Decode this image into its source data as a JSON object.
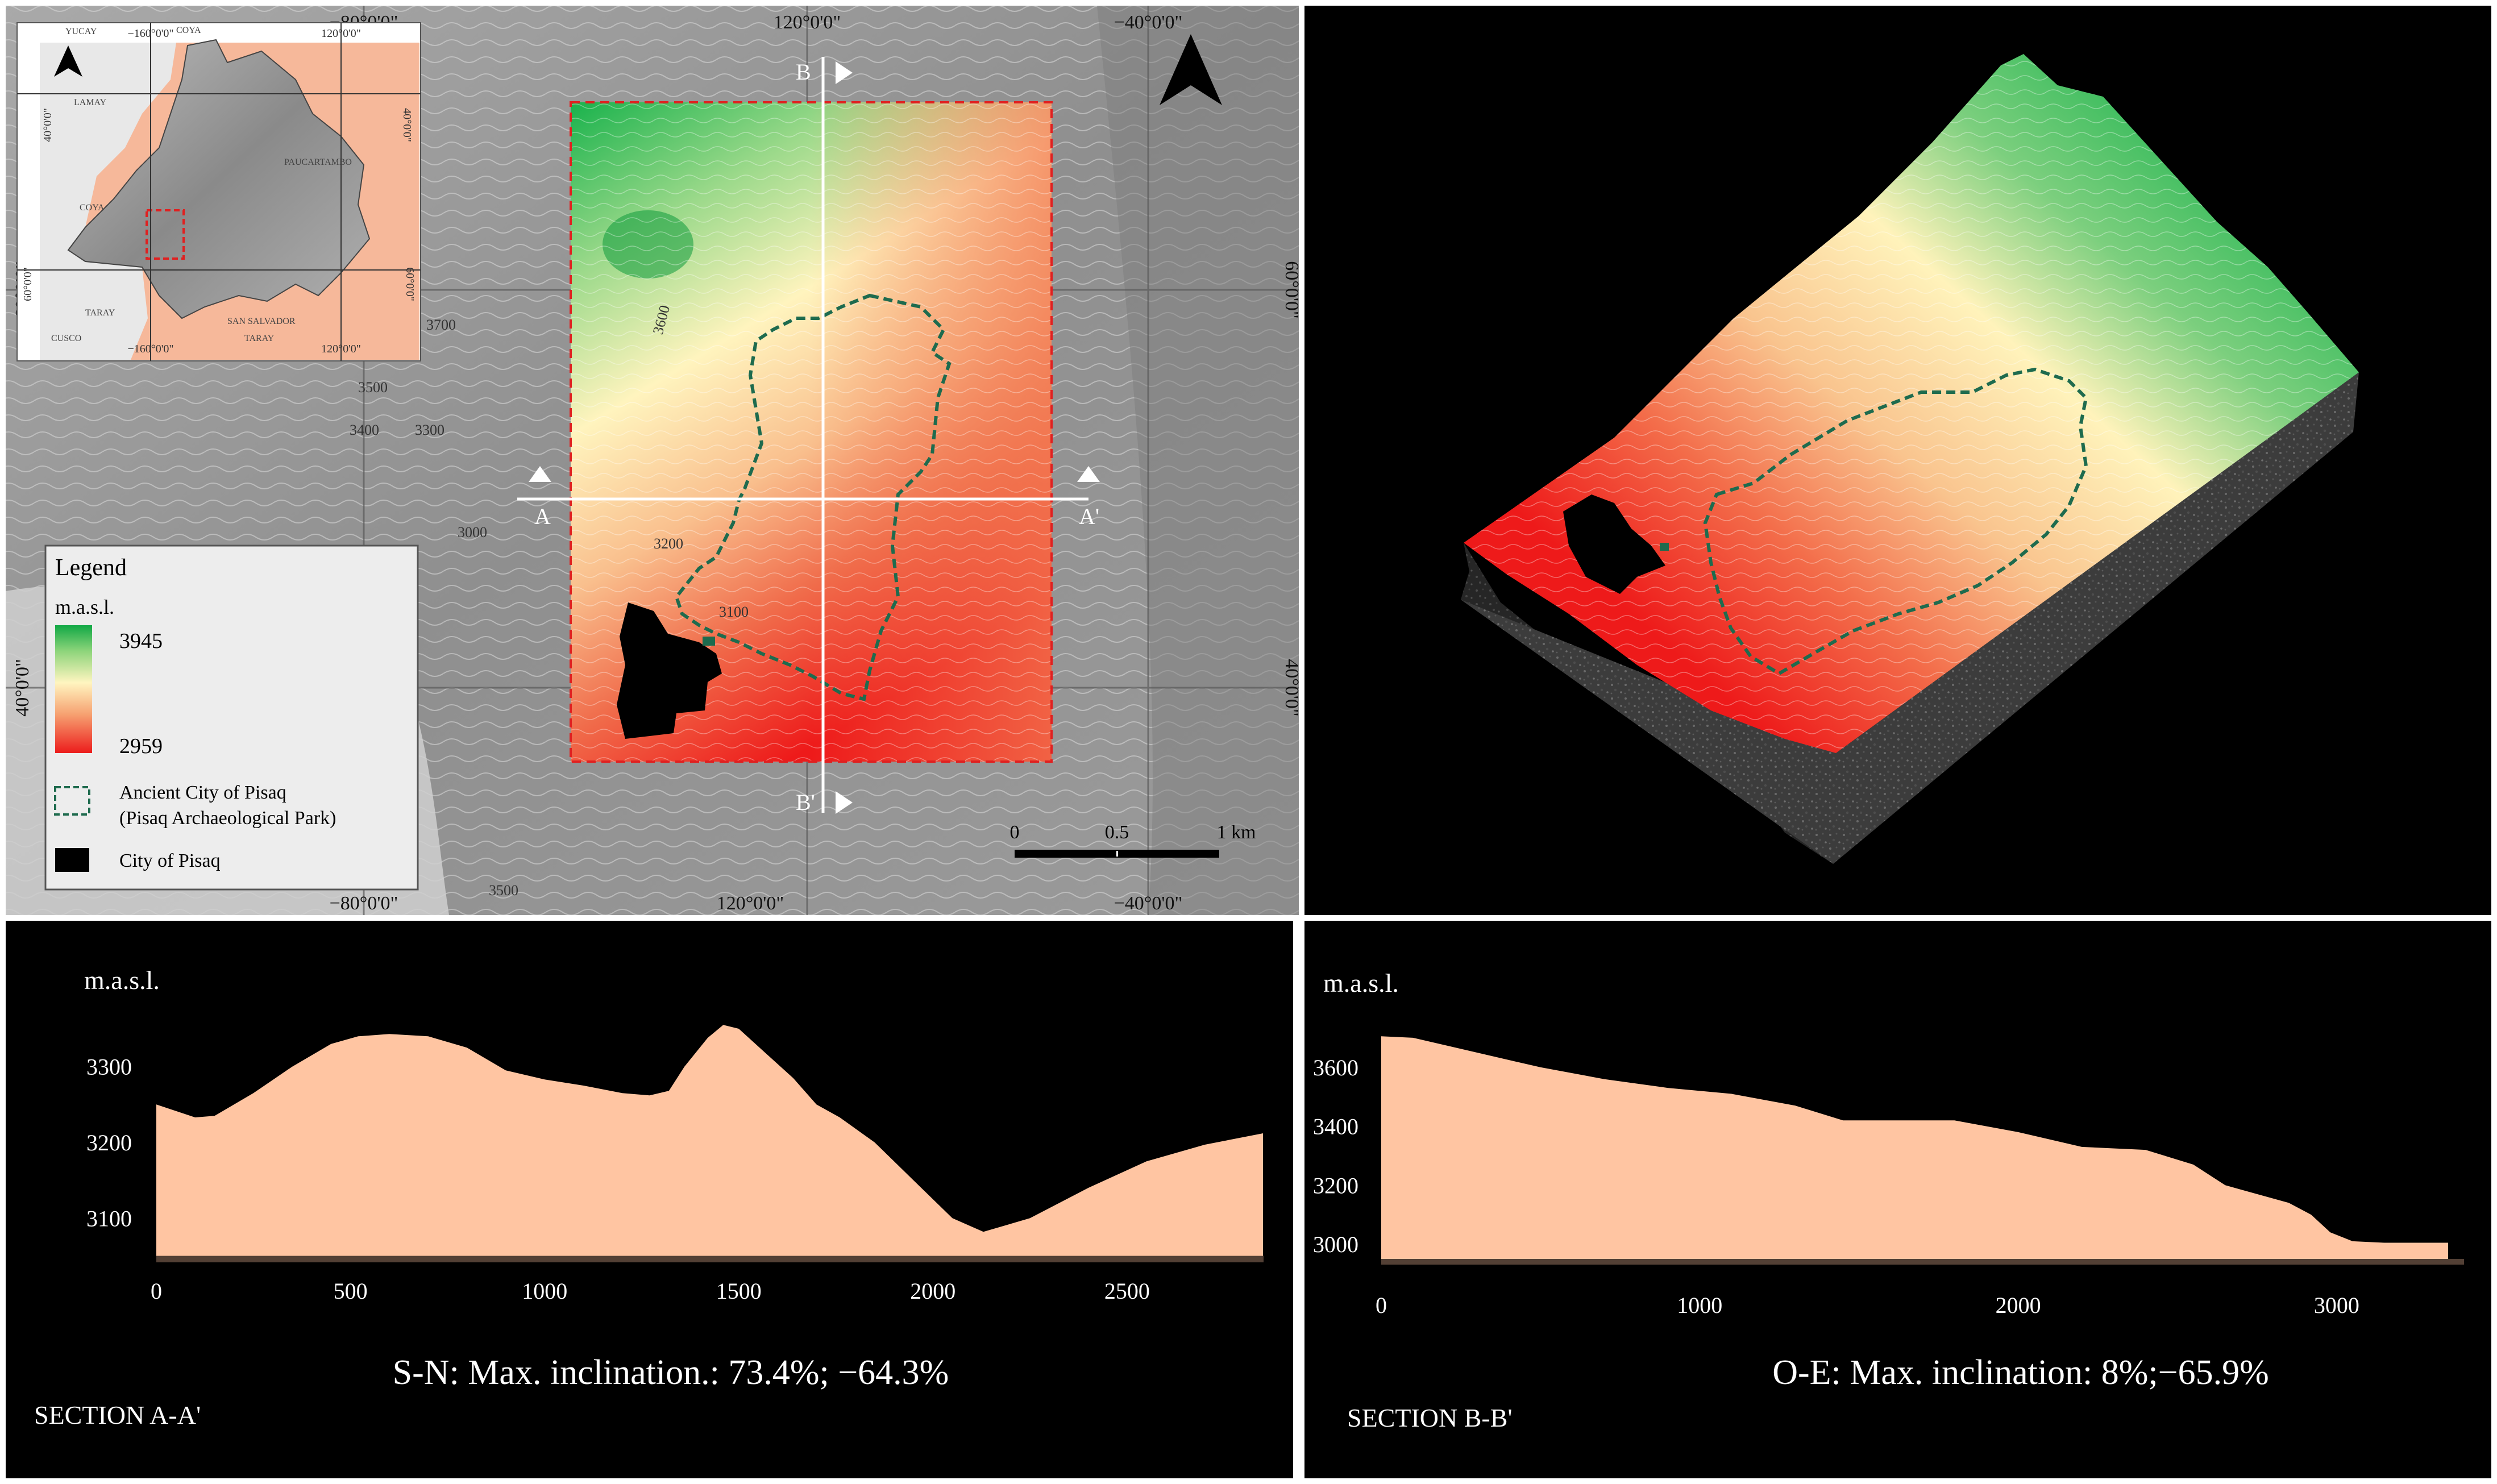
{
  "map": {
    "coords": {
      "top_left": "−80°0'0\"",
      "top_mid": "120°0'0\"",
      "top_right": "−40°0'0\"",
      "bottom_left": "−80°0'0\"",
      "bottom_mid": "120°0'0\"",
      "bottom_right": "−40°0'0\"",
      "left_upper": "60°0'0\"",
      "left_lower": "40°0'0\"",
      "right_upper": "60°0'0\"",
      "right_lower": "40°0'0\""
    },
    "contour_labels": [
      "3600",
      "3200",
      "3100",
      "3700",
      "3500",
      "3400",
      "3300",
      "3000",
      "3500"
    ],
    "section_labels": {
      "a": "A",
      "a_prime": "A'",
      "b": "B",
      "b_prime": "B'"
    },
    "scale": {
      "l0": "0",
      "l1": "0.5",
      "l2": "1 km"
    }
  },
  "inset": {
    "coords": {
      "top_a": "−160°0'0\"",
      "top_b": "120°0'0\"",
      "bottom_a": "−160°0'0\"",
      "bottom_b": "120°0'0\"",
      "left_a": "40°0'0\"",
      "left_b": "60°0'0\"",
      "right_a": "40°0'0\"",
      "right_b": "60°0'0\""
    },
    "places": [
      "YUCAY",
      "COYA",
      "LAMAY",
      "PAUCARTAMBO",
      "COYA",
      "TARAY",
      "SAN SALVADOR",
      "CUSCO",
      "TARAY"
    ]
  },
  "legend": {
    "title": "Legend",
    "unit": "m.a.s.l.",
    "max": "3945",
    "min": "2959",
    "ancient_line1": "Ancient City of Pisaq",
    "ancient_line2": "(Pisaq Archaeological Park)",
    "city": "City of Pisaq"
  },
  "colors": {
    "high": "#18b850",
    "mid": "#fff2b8",
    "low": "#ee1a1a",
    "profile_fill": "#ffc5a2",
    "boundary": "#1e6b4e"
  },
  "chart_data": [
    {
      "type": "area",
      "title": "SECTION A-A'",
      "subtitle": "S-N: Max. inclination.: 73.4%; −64.3%",
      "ylabel": "m.a.s.l.",
      "xlim": [
        0,
        2850
      ],
      "ylim": [
        3050,
        3350
      ],
      "xticks": [
        0,
        500,
        1000,
        1500,
        2000,
        2500
      ],
      "yticks": [
        3100,
        3200,
        3300
      ],
      "x": [
        0,
        100,
        150,
        250,
        350,
        450,
        520,
        600,
        700,
        800,
        900,
        1000,
        1100,
        1200,
        1270,
        1320,
        1360,
        1420,
        1460,
        1500,
        1560,
        1640,
        1700,
        1760,
        1850,
        1950,
        2050,
        2130,
        2250,
        2400,
        2550,
        2700,
        2850
      ],
      "values": [
        3250,
        3233,
        3235,
        3265,
        3300,
        3330,
        3340,
        3343,
        3340,
        3325,
        3295,
        3283,
        3275,
        3265,
        3262,
        3268,
        3300,
        3338,
        3355,
        3350,
        3322,
        3285,
        3250,
        3233,
        3200,
        3150,
        3100,
        3082,
        3100,
        3140,
        3175,
        3197,
        3212
      ]
    },
    {
      "type": "area",
      "title": "SECTION  B-B'",
      "subtitle": "O-E: Max. inclination: 8%;−65.9%",
      "ylabel": "m.a.s.l.",
      "xlim": [
        0,
        3400
      ],
      "ylim": [
        2950,
        3750
      ],
      "xticks": [
        0,
        1000,
        2000,
        3000
      ],
      "yticks": [
        3000,
        3200,
        3400,
        3600
      ],
      "x": [
        0,
        100,
        300,
        500,
        700,
        900,
        1100,
        1300,
        1450,
        1600,
        1800,
        2000,
        2200,
        2400,
        2550,
        2650,
        2750,
        2850,
        2920,
        2980,
        3050,
        3150,
        3250,
        3350
      ],
      "values": [
        3705,
        3700,
        3650,
        3600,
        3560,
        3530,
        3510,
        3470,
        3420,
        3420,
        3420,
        3380,
        3330,
        3320,
        3270,
        3200,
        3170,
        3140,
        3100,
        3040,
        3010,
        3005,
        3005,
        3005
      ]
    }
  ]
}
